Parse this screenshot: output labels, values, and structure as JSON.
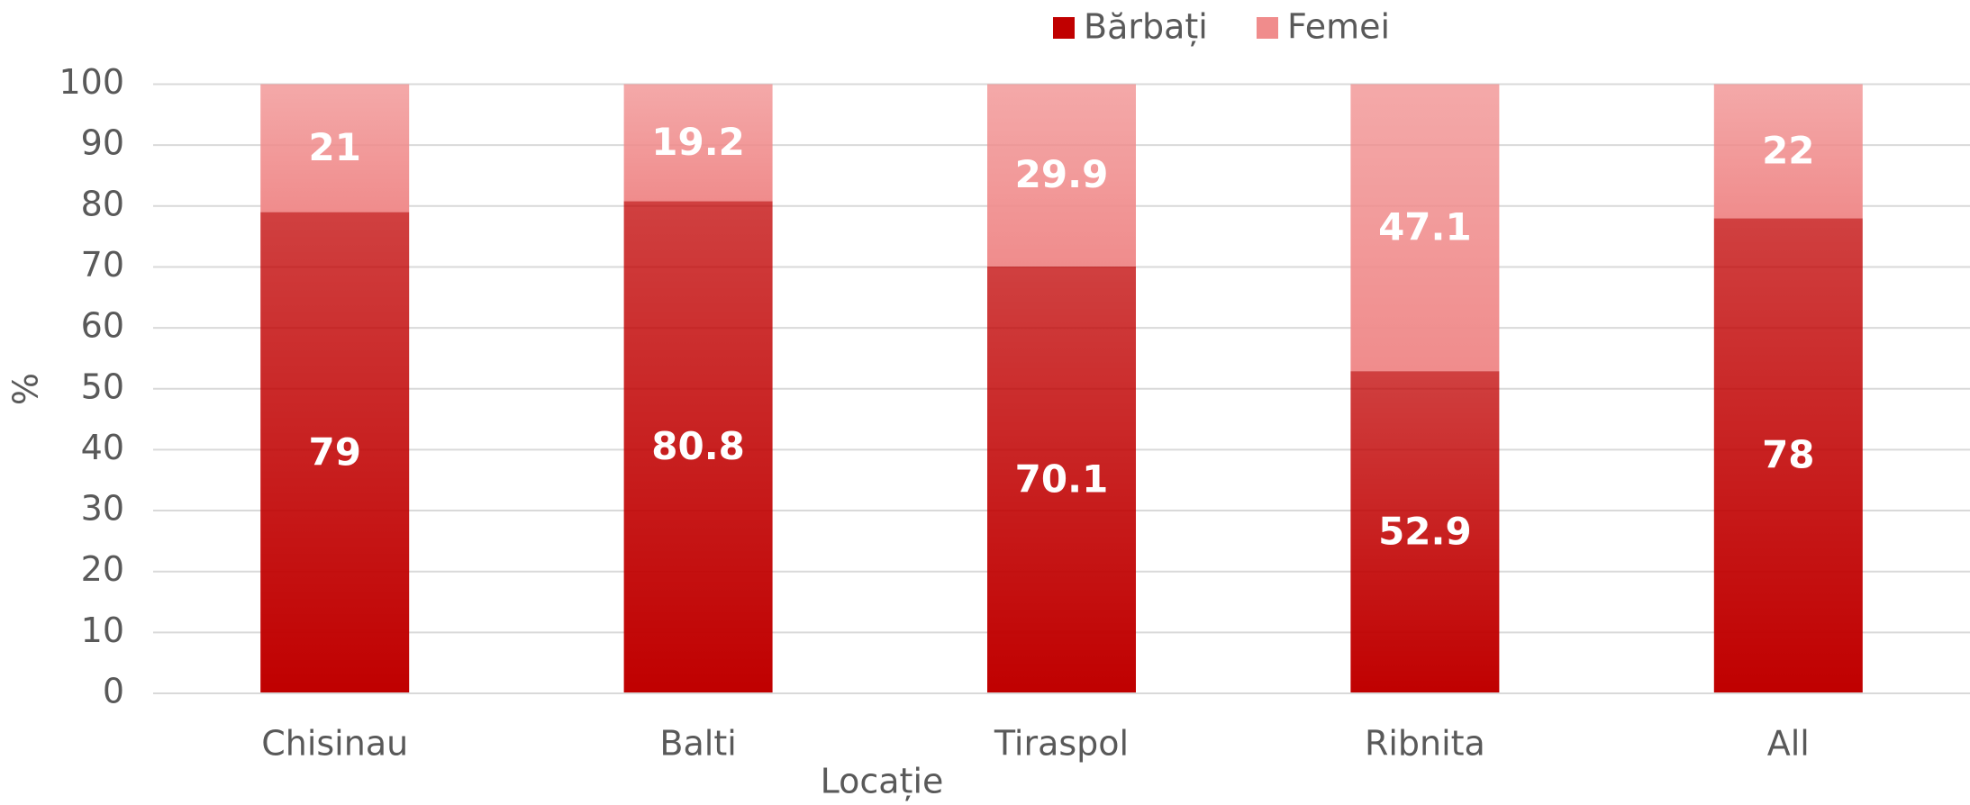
{
  "chart_data": {
    "type": "stacked_bar",
    "categories": [
      "Chisinau",
      "Balti",
      "Tiraspol",
      "Ribnita",
      "All"
    ],
    "series": [
      {
        "name": "Bărbați",
        "color": "#c00000",
        "values": [
          79,
          80.8,
          70.1,
          52.9,
          78
        ]
      },
      {
        "name": "Femei",
        "color": "#f08c8c",
        "values": [
          21,
          19.2,
          29.9,
          47.1,
          22
        ]
      }
    ],
    "ylabel": "%",
    "xlabel": "Locație",
    "ylim": [
      0,
      100
    ],
    "yticks": [
      0,
      10,
      20,
      30,
      40,
      50,
      60,
      70,
      80,
      90,
      100
    ],
    "grid": true,
    "legend": "top"
  }
}
